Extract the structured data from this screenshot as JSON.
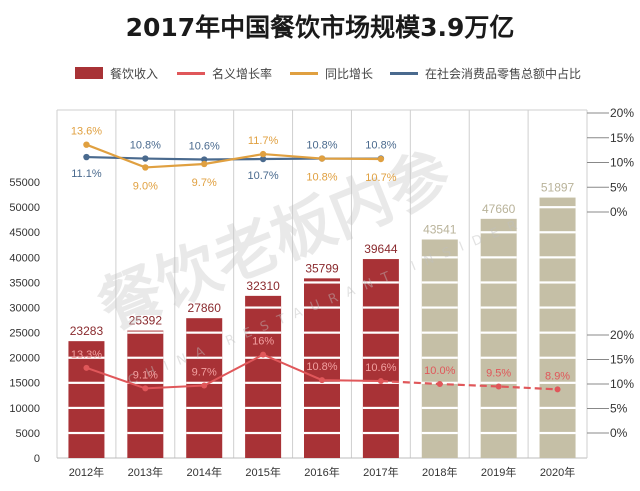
{
  "title": "2017年中国餐饮市场规模3.9万亿",
  "legend": [
    {
      "label": "餐饮收入",
      "color": "#a83236",
      "kind": "box"
    },
    {
      "label": "名义增长率",
      "color": "#e0575a",
      "kind": "line"
    },
    {
      "label": "同比增长",
      "color": "#e0a040",
      "kind": "line"
    },
    {
      "label": "在社会消费品零售总额中占比",
      "color": "#4a6a8e",
      "kind": "line"
    }
  ],
  "watermark": {
    "text": "餐饮老板内参",
    "sub": "CHINA RESTAURANT INSIDER"
  },
  "chart_data": {
    "type": "bar",
    "title": "2017年中国餐饮市场规模3.9万亿",
    "categories": [
      "2012年",
      "2013年",
      "2014年",
      "2015年",
      "2016年",
      "2017年",
      "2018年",
      "2019年",
      "2020年"
    ],
    "left_axis": {
      "ylim": [
        0,
        55000
      ],
      "ticks": [
        "0",
        "5000",
        "10000",
        "15000",
        "20000",
        "25000",
        "30000",
        "35000",
        "40000",
        "45000",
        "50000",
        "55000"
      ]
    },
    "upper_right_axis": {
      "ylim": [
        0,
        20
      ],
      "ticks": [
        "0%",
        "5%",
        "10%",
        "15%",
        "20%"
      ]
    },
    "lower_right_axis": {
      "ylim": [
        0,
        20
      ],
      "ticks": [
        "0%",
        "5%",
        "10%",
        "15%",
        "20%"
      ]
    },
    "grid": true,
    "legend_position": "top",
    "series": [
      {
        "name": "餐饮收入",
        "type": "bar",
        "axis": "left",
        "values": [
          23283,
          25392,
          27860,
          32310,
          35799,
          39644,
          43541,
          47660,
          51897
        ],
        "labels": [
          "23283",
          "25392",
          "27860",
          "32310",
          "35799",
          "39644",
          "43541",
          "47660",
          "51897"
        ],
        "actual_color": "#a83236",
        "forecast_color": "#c5bfa6",
        "forecast_from_index": 6
      },
      {
        "name": "名义增长率",
        "type": "line",
        "axis": "lower_right",
        "values": [
          13.3,
          9.1,
          9.7,
          16,
          10.8,
          10.6,
          10.0,
          9.5,
          8.9
        ],
        "labels": [
          "13.3%",
          "9.1%",
          "9.7%",
          "16%",
          "10.8%",
          "10.6%",
          "10.0%",
          "9.5%",
          "8.9%"
        ],
        "color": "#e0575a",
        "dashed_from_index": 5
      },
      {
        "name": "同比增长",
        "type": "line",
        "axis": "upper_right",
        "values": [
          13.6,
          9.0,
          9.7,
          11.7,
          10.8,
          10.7
        ],
        "labels": [
          "13.6%",
          "9.0%",
          "9.7%",
          "11.7%",
          "10.8%",
          "10.7%"
        ],
        "color": "#e0a040"
      },
      {
        "name": "在社会消费品零售总额中占比",
        "type": "line",
        "axis": "upper_right",
        "values": [
          11.1,
          10.8,
          10.6,
          10.7,
          10.8,
          10.8
        ],
        "labels": [
          "11.1%",
          "10.8%",
          "10.6%",
          "10.7%",
          "10.8%",
          "10.8%"
        ],
        "color": "#4a6a8e"
      }
    ]
  }
}
